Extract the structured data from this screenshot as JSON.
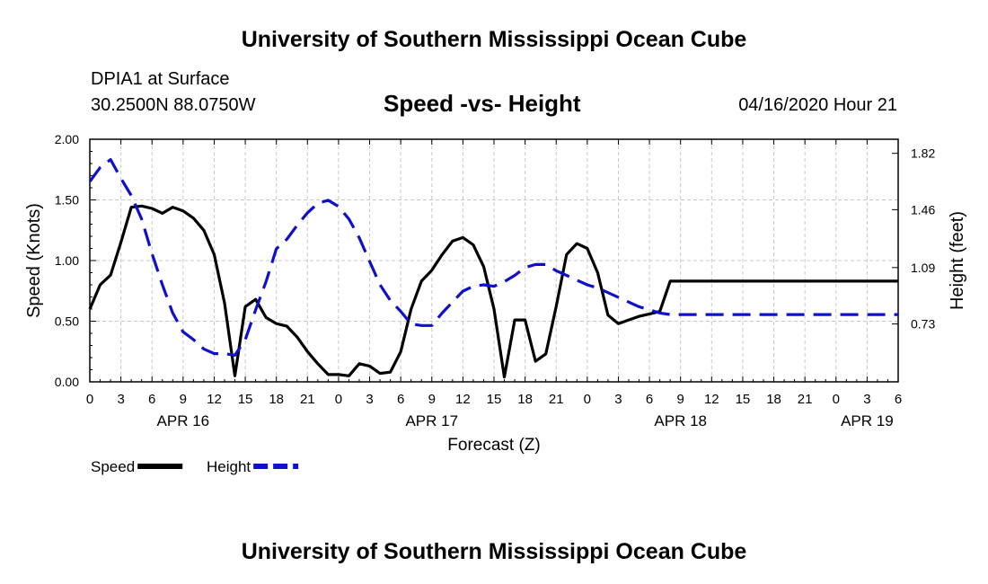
{
  "header": {
    "title": "University of Southern Mississippi Ocean Cube",
    "station": "DPIA1 at Surface",
    "location": "30.2500N 88.0750W",
    "date": "04/16/2020 Hour 21",
    "footer_title": "University of Southern Mississippi Ocean Cube"
  },
  "chart_data": {
    "type": "line",
    "title": "Speed -vs- Height",
    "xlabel": "Forecast (Z)",
    "ylabel": "Speed (Knots)",
    "y2label": "Height (feet)",
    "x_unit": "forecast hours since APR 16 00Z",
    "xlim": [
      0,
      78
    ],
    "ylim": [
      0,
      2.0
    ],
    "y2lim": [
      0.36,
      1.91
    ],
    "yticks": [
      "0.00",
      "0.50",
      "1.00",
      "1.50",
      "2.00"
    ],
    "y2ticks": [
      "0.73",
      "1.09",
      "1.46",
      "1.82"
    ],
    "xtick_labels": [
      "0",
      "3",
      "6",
      "9",
      "12",
      "15",
      "18",
      "21",
      "0",
      "3",
      "6",
      "9",
      "12",
      "15",
      "18",
      "21",
      "0",
      "3",
      "6",
      "9",
      "12",
      "15",
      "18",
      "21",
      "0",
      "3",
      "6"
    ],
    "day_labels": [
      {
        "hour": 9,
        "label": "APR 16"
      },
      {
        "hour": 33,
        "label": "APR 17"
      },
      {
        "hour": 57,
        "label": "APR 18"
      },
      {
        "hour": 75,
        "label": "APR 19"
      }
    ],
    "grid": true,
    "legend": {
      "position": "bottom-left",
      "entries": [
        "Speed",
        "Height"
      ]
    },
    "series": [
      {
        "name": "Speed",
        "axis": "left",
        "color": "#000000",
        "style": "solid",
        "x": [
          0,
          1,
          2,
          3,
          4,
          5,
          6,
          7,
          8,
          9,
          10,
          11,
          12,
          13,
          14,
          15,
          16,
          17,
          18,
          19,
          20,
          21,
          22,
          23,
          24,
          25,
          26,
          27,
          28,
          29,
          30,
          31,
          32,
          33,
          34,
          35,
          36,
          37,
          38,
          39,
          40,
          41,
          42,
          43,
          44,
          45,
          46,
          47,
          48,
          49,
          50,
          51,
          52,
          53,
          54,
          55,
          56,
          57,
          58,
          59,
          60,
          61,
          62,
          63,
          64,
          65,
          66,
          67,
          68,
          69,
          70,
          71,
          72,
          73,
          74,
          75,
          76,
          77,
          78
        ],
        "values": [
          0.6,
          0.8,
          0.88,
          1.15,
          1.44,
          1.45,
          1.43,
          1.39,
          1.44,
          1.41,
          1.35,
          1.25,
          1.05,
          0.65,
          0.05,
          0.62,
          0.68,
          0.53,
          0.48,
          0.46,
          0.37,
          0.25,
          0.15,
          0.06,
          0.06,
          0.05,
          0.15,
          0.13,
          0.07,
          0.08,
          0.25,
          0.6,
          0.83,
          0.92,
          1.05,
          1.16,
          1.19,
          1.13,
          0.95,
          0.6,
          0.04,
          0.51,
          0.51,
          0.17,
          0.23,
          0.62,
          1.05,
          1.14,
          1.1,
          0.9,
          0.55,
          0.48,
          0.51,
          0.54,
          0.56,
          0.58,
          0.83,
          0.83,
          0.83,
          0.83,
          0.83,
          0.83,
          0.83,
          0.83,
          0.83,
          0.83,
          0.83,
          0.83,
          0.83,
          0.83,
          0.83,
          0.83,
          0.83,
          0.83,
          0.83,
          0.83,
          0.83,
          0.83,
          0.83
        ]
      },
      {
        "name": "Height",
        "axis": "right",
        "color": "#1010cc",
        "style": "dashed",
        "x": [
          0,
          1,
          2,
          3,
          4,
          5,
          6,
          7,
          8,
          9,
          10,
          11,
          12,
          13,
          14,
          15,
          16,
          17,
          18,
          19,
          20,
          21,
          22,
          23,
          24,
          25,
          26,
          27,
          28,
          29,
          30,
          31,
          32,
          33,
          34,
          35,
          36,
          37,
          38,
          39,
          40,
          41,
          42,
          43,
          44,
          45,
          46,
          47,
          48,
          49,
          50,
          51,
          52,
          53,
          54,
          55,
          56,
          57,
          58,
          59,
          60,
          61,
          62,
          63,
          64,
          65,
          66,
          67,
          68,
          69,
          70,
          71,
          72,
          73,
          74,
          75,
          76,
          77,
          78
        ],
        "values": [
          1.64,
          1.73,
          1.78,
          1.66,
          1.55,
          1.4,
          1.18,
          0.98,
          0.8,
          0.68,
          0.63,
          0.57,
          0.54,
          0.54,
          0.53,
          0.63,
          0.82,
          1.0,
          1.21,
          1.27,
          1.36,
          1.44,
          1.5,
          1.52,
          1.48,
          1.4,
          1.28,
          1.13,
          0.98,
          0.88,
          0.81,
          0.73,
          0.72,
          0.72,
          0.8,
          0.87,
          0.94,
          0.97,
          0.98,
          0.97,
          1.0,
          1.04,
          1.09,
          1.11,
          1.11,
          1.07,
          1.04,
          1.01,
          0.98,
          0.96,
          0.93,
          0.9,
          0.87,
          0.84,
          0.82,
          0.8,
          0.79,
          0.79,
          0.79,
          0.79,
          0.79,
          0.79,
          0.79,
          0.79,
          0.79,
          0.79,
          0.79,
          0.79,
          0.79,
          0.79,
          0.79,
          0.79,
          0.79,
          0.79,
          0.79,
          0.79,
          0.79,
          0.79,
          0.79
        ]
      }
    ]
  }
}
